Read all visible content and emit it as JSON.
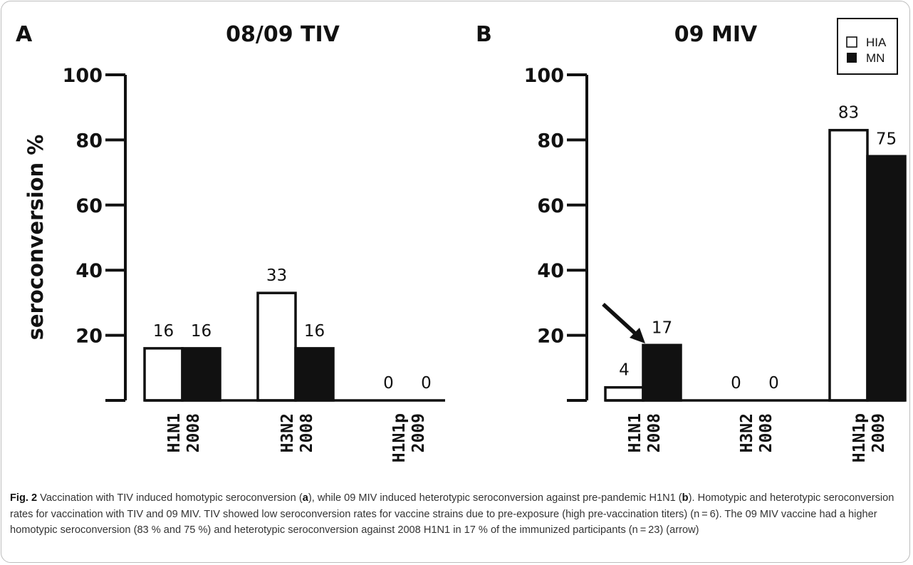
{
  "chart_data": [
    {
      "panel": "A",
      "type": "bar",
      "title": "08/09 TIV",
      "categories": [
        [
          "H1N1",
          "2008"
        ],
        [
          "H3N2",
          "2008"
        ],
        [
          "H1N1p",
          "2009"
        ]
      ],
      "series": [
        {
          "name": "HIA",
          "values": [
            16,
            33,
            0
          ],
          "labels": [
            "16",
            "33",
            "0"
          ],
          "color": "#ffffff"
        },
        {
          "name": "MN",
          "values": [
            16,
            16,
            0
          ],
          "labels": [
            "16",
            "16",
            "0"
          ],
          "color": "#111111"
        }
      ],
      "ylabel": "seroconversion %",
      "yticks": [
        "20",
        "40",
        "60",
        "80",
        "100"
      ],
      "ylim": [
        0,
        100
      ],
      "grid": false
    },
    {
      "panel": "B",
      "type": "bar",
      "title": "09 MIV",
      "categories": [
        [
          "H1N1",
          "2008"
        ],
        [
          "H3N2",
          "2008"
        ],
        [
          "H1N1p",
          "2009"
        ]
      ],
      "series": [
        {
          "name": "HIA",
          "values": [
            4,
            0,
            83
          ],
          "labels": [
            "4",
            "0",
            "83"
          ],
          "color": "#ffffff"
        },
        {
          "name": "MN",
          "values": [
            17,
            0,
            75
          ],
          "labels": [
            "17",
            "0",
            "75"
          ],
          "color": "#111111"
        }
      ],
      "yticks": [
        "20",
        "40",
        "60",
        "80",
        "100"
      ],
      "ylim": [
        0,
        100
      ],
      "grid": false,
      "legend": {
        "position": "top-right",
        "entries": [
          "HIA",
          "MN"
        ]
      },
      "annotation": "arrow pointing to MN bar of H1N1 2008"
    }
  ],
  "caption": {
    "fig_label": "Fig. 2",
    "parts": [
      " Vaccination with TIV induced homotypic seroconversion (",
      "a",
      "), while 09 MIV induced heterotypic seroconversion against pre-pandemic H1N1 (",
      "b",
      "). Homotypic and heterotypic seroconversion rates for vaccination with TIV and 09 MIV. TIV showed low seroconversion rates for vaccine strains due to pre-exposure (high pre-vaccination titers) (n = 6). The 09 MIV vaccine had a higher homotypic seroconversion (83 % and 75 %) and heterotypic seroconversion against 2008 H1N1 in 17 % of the immunized participants (n = 23) (arrow)"
    ]
  }
}
